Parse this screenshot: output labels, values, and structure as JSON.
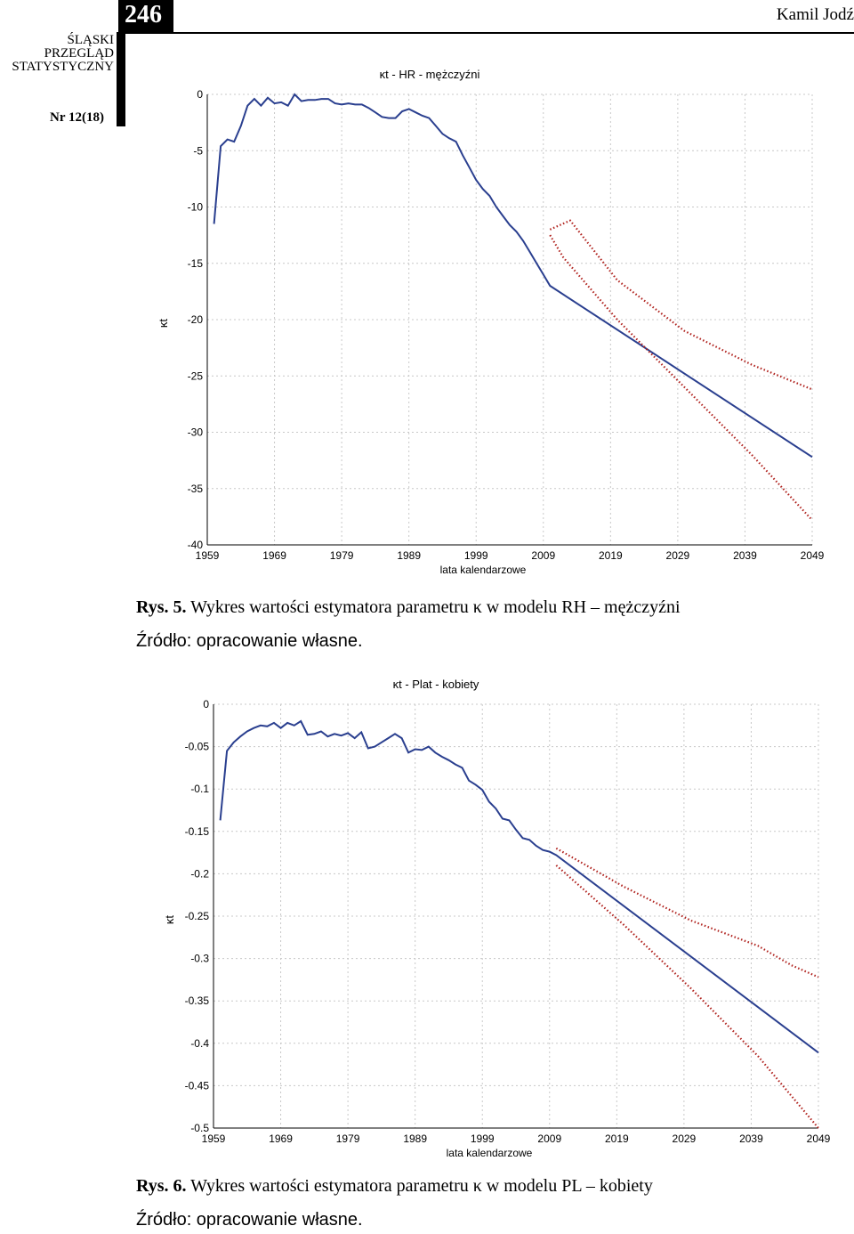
{
  "header": {
    "page_number": "246",
    "author": "Kamil Jodź",
    "journal_lines": [
      "ŚLĄSKI",
      "PRZEGLĄD",
      "STATYSTYCZNY"
    ],
    "issue": "Nr 12(18)"
  },
  "figure1": {
    "label": "Rys. 5.",
    "caption": "Wykres wartości estymatora parametru κ w modelu RH – mężczyźni",
    "source": "Źródło: opracowanie własne."
  },
  "figure2": {
    "label": "Rys. 6.",
    "caption": "Wykres wartości estymatora parametru κ w modelu PL – kobiety",
    "source": "Źródło: opracowanie własne."
  },
  "colors": {
    "series": "#2a3f8f",
    "bounds": "#b0221e",
    "grid": "#c8c8c8"
  },
  "chart_data": [
    {
      "type": "line",
      "title": "κt - HR - mężczyźni",
      "xlabel": "lata kalendarzowe",
      "ylabel": "κt",
      "xlim": [
        1959,
        2049
      ],
      "ylim": [
        -40,
        0
      ],
      "grid": true,
      "x_ticks": [
        1959,
        1969,
        1979,
        1989,
        1999,
        2009,
        2019,
        2029,
        2039,
        2049
      ],
      "y_ticks": [
        0,
        -5,
        -10,
        -15,
        -20,
        -25,
        -30,
        -35,
        -40
      ],
      "series": [
        {
          "style": "solid",
          "x": [
            1960,
            1961,
            1962,
            1963,
            1964,
            1965,
            1966,
            1967,
            1968,
            1969,
            1970,
            1971,
            1972,
            1973,
            1974,
            1975,
            1976,
            1977,
            1978,
            1979,
            1980,
            1981,
            1982,
            1983,
            1984,
            1985,
            1986,
            1987,
            1988,
            1989,
            1990,
            1991,
            1992,
            1993,
            1994,
            1995,
            1996,
            1997,
            1998,
            1999,
            2000,
            2001,
            2002,
            2003,
            2004,
            2005,
            2006,
            2007,
            2008,
            2009,
            2010,
            2049
          ],
          "values": [
            -11.5,
            -4.6,
            -4.0,
            -4.2,
            -2.8,
            -1.0,
            -0.4,
            -1.0,
            -0.3,
            -0.8,
            -0.7,
            -1.0,
            0.0,
            -0.6,
            -0.5,
            -0.5,
            -0.4,
            -0.4,
            -0.8,
            -0.9,
            -0.8,
            -0.9,
            -0.9,
            -1.2,
            -1.6,
            -2.0,
            -2.1,
            -2.1,
            -1.5,
            -1.3,
            -1.6,
            -1.9,
            -2.1,
            -2.8,
            -3.5,
            -3.9,
            -4.2,
            -5.4,
            -6.5,
            -7.6,
            -8.4,
            -9.0,
            -10.0,
            -10.8,
            -11.6,
            -12.2,
            -13.0,
            -14.0,
            -15.0,
            -16.0,
            -17.0,
            -32.2
          ]
        },
        {
          "style": "dotted",
          "x": [
            2010,
            2013,
            2020,
            2030,
            2040,
            2049
          ],
          "values": [
            -12.0,
            -11.2,
            -16.5,
            -21.0,
            -24.0,
            -26.2
          ]
        },
        {
          "style": "dotted",
          "x": [
            2010,
            2012,
            2020,
            2030,
            2040,
            2049
          ],
          "values": [
            -12.5,
            -14.5,
            -20.0,
            -26.0,
            -32.0,
            -37.8
          ]
        }
      ]
    },
    {
      "type": "line",
      "title": "κt - Plat - kobiety",
      "xlabel": "lata kalendarzowe",
      "ylabel": "κt",
      "xlim": [
        1959,
        2049
      ],
      "ylim": [
        -0.5,
        0
      ],
      "grid": true,
      "x_ticks": [
        1959,
        1969,
        1979,
        1989,
        1999,
        2009,
        2019,
        2029,
        2039,
        2049
      ],
      "y_ticks": [
        0,
        -0.05,
        -0.1,
        -0.15,
        -0.2,
        -0.25,
        -0.3,
        -0.35,
        -0.4,
        -0.45,
        -0.5
      ],
      "series": [
        {
          "style": "solid",
          "x": [
            1960,
            1961,
            1962,
            1963,
            1964,
            1965,
            1966,
            1967,
            1968,
            1969,
            1970,
            1971,
            1972,
            1973,
            1974,
            1975,
            1976,
            1977,
            1978,
            1979,
            1980,
            1981,
            1982,
            1983,
            1984,
            1985,
            1986,
            1987,
            1988,
            1989,
            1990,
            1991,
            1992,
            1993,
            1994,
            1995,
            1996,
            1997,
            1998,
            1999,
            2000,
            2001,
            2002,
            2003,
            2004,
            2005,
            2006,
            2007,
            2008,
            2009,
            2010,
            2049
          ],
          "values": [
            -0.137,
            -0.055,
            -0.045,
            -0.038,
            -0.032,
            -0.028,
            -0.025,
            -0.026,
            -0.022,
            -0.028,
            -0.022,
            -0.025,
            -0.02,
            -0.036,
            -0.035,
            -0.032,
            -0.038,
            -0.035,
            -0.037,
            -0.034,
            -0.04,
            -0.033,
            -0.052,
            -0.05,
            -0.045,
            -0.04,
            -0.035,
            -0.04,
            -0.057,
            -0.053,
            -0.054,
            -0.05,
            -0.057,
            -0.062,
            -0.066,
            -0.071,
            -0.075,
            -0.09,
            -0.095,
            -0.101,
            -0.115,
            -0.123,
            -0.135,
            -0.137,
            -0.148,
            -0.158,
            -0.16,
            -0.167,
            -0.172,
            -0.174,
            -0.178,
            -0.411
          ]
        },
        {
          "style": "dotted",
          "x": [
            2010,
            2020,
            2030,
            2040,
            2045,
            2049
          ],
          "values": [
            -0.17,
            -0.215,
            -0.255,
            -0.285,
            -0.308,
            -0.322
          ]
        },
        {
          "style": "dotted",
          "x": [
            2010,
            2020,
            2030,
            2040,
            2049
          ],
          "values": [
            -0.19,
            -0.26,
            -0.335,
            -0.415,
            -0.5
          ]
        }
      ]
    }
  ]
}
